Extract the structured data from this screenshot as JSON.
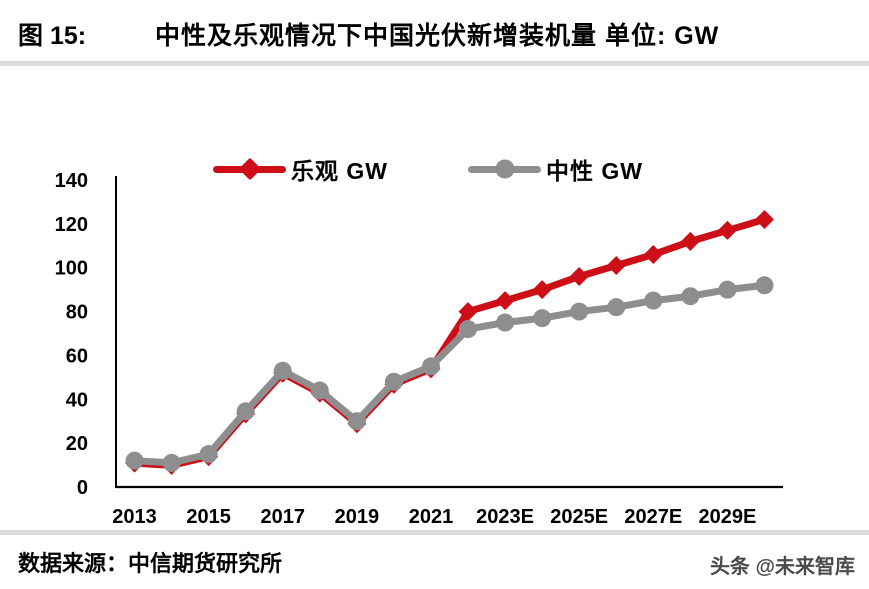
{
  "header": {
    "figure_label": "图 15:",
    "title": "中性及乐观情况下中国光伏新增装机量 单位: GW"
  },
  "footer": {
    "source": "数据来源：中信期货研究所",
    "watermark": "头条 @未来智库"
  },
  "colors": {
    "optimistic_red": "#ce0e16",
    "neutral_gray": "#8e8e8e",
    "axis_black": "#000000",
    "divider_gray": "#dbdbdb",
    "watermark_gray": "#4a4a4a"
  },
  "chart_data": {
    "type": "line",
    "title": "中性及乐观情况下中国光伏新增装机量",
    "unit": "GW",
    "x": [
      "2013",
      "2014",
      "2015",
      "2016",
      "2017",
      "2018",
      "2019",
      "2020",
      "2021",
      "2022E",
      "2023E",
      "2024E",
      "2025E",
      "2026E",
      "2027E",
      "2028E",
      "2029E",
      "2030E"
    ],
    "x_tick_labels": [
      "2013",
      "2015",
      "2017",
      "2019",
      "2021",
      "2023E",
      "2025E",
      "2027E",
      "2029E"
    ],
    "y_ticks": [
      0,
      20,
      40,
      60,
      80,
      100,
      120,
      140
    ],
    "ylim": [
      0,
      140
    ],
    "grid": false,
    "legend_position": "top",
    "axis_color": "#000000",
    "series": [
      {
        "name": "乐观 GW",
        "color": "#ce0e16",
        "marker": "diamond",
        "values": [
          12,
          11,
          15,
          34.5,
          53,
          44,
          30,
          48,
          55,
          80,
          85,
          90,
          96,
          101,
          106,
          112,
          117,
          122
        ]
      },
      {
        "name": "中性 GW",
        "color": "#8e8e8e",
        "marker": "circle",
        "values": [
          12,
          11,
          15,
          34.5,
          53,
          44,
          30,
          48,
          55,
          72,
          75,
          77,
          80,
          82,
          85,
          87,
          90,
          92
        ]
      }
    ]
  }
}
